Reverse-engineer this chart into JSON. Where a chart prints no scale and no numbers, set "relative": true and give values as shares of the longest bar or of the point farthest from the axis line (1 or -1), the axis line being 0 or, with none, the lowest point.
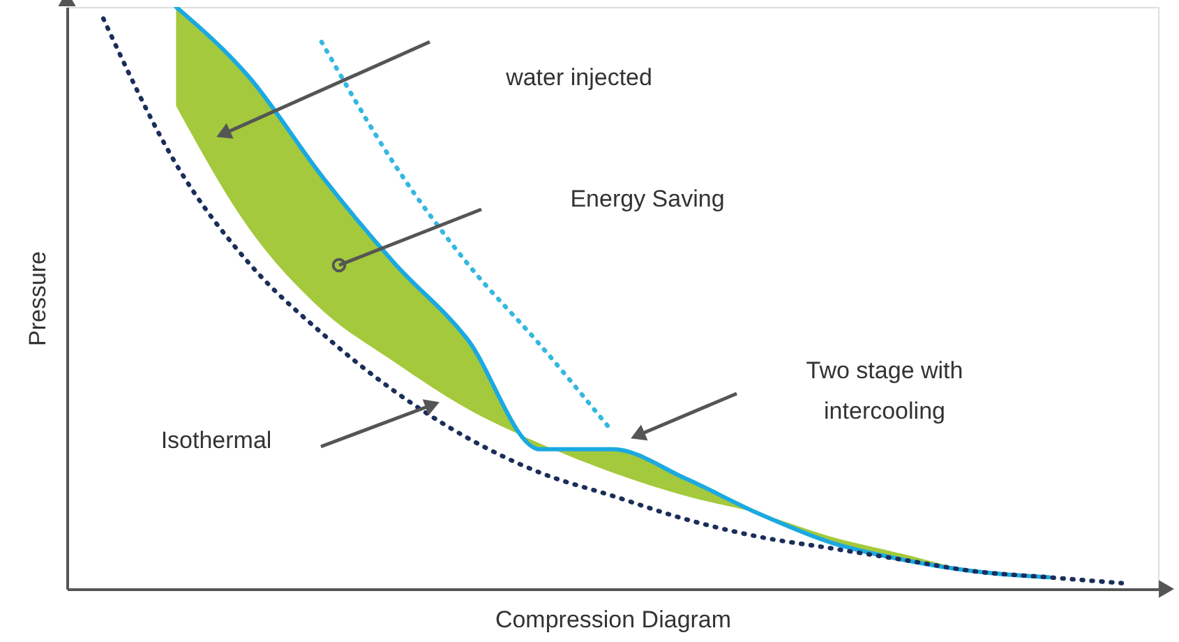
{
  "chart_data": {
    "type": "line",
    "relative": true,
    "xlabel": "Compression Diagram",
    "ylabel": "Pressure",
    "categories": [
      null,
      null,
      null,
      null,
      null,
      null,
      null,
      null,
      null,
      null,
      null,
      null,
      null,
      null,
      null
    ],
    "series": [
      {
        "type": "line",
        "color": "#1ba9e1",
        "line_style": "solid",
        "values": [
          null,
          1.0,
          0.88,
          0.71,
          0.56,
          0.43,
          0.24,
          0.24,
          0.19,
          0.13,
          0.08,
          0.05,
          0.03,
          0.02,
          null
        ],
        "lower": [
          null,
          0.83,
          0.62,
          0.48,
          0.39,
          0.31,
          0.25,
          0.2,
          0.16,
          0.13,
          0.09,
          0.06,
          0.03,
          0.02,
          null
        ],
        "upper": [
          null,
          1.0,
          0.88,
          0.71,
          0.56,
          0.43,
          0.24,
          0.24,
          0.19,
          0.13,
          0.08,
          0.05,
          0.03,
          0.02,
          null
        ]
      },
      {
        "color": "#1b2e5a",
        "line_style": "dotted",
        "values": [
          0.98,
          0.73,
          0.56,
          0.44,
          0.34,
          0.26,
          0.2,
          0.16,
          0.12,
          0.09,
          0.07,
          0.05,
          0.03,
          0.02,
          0.01
        ]
      },
      {
        "color": "#35b8e0",
        "line_style": "dotted",
        "values": [
          null,
          null,
          null,
          0.94,
          0.73,
          0.56,
          0.42,
          0.27,
          null,
          null,
          null,
          null,
          null,
          null,
          null
        ]
      }
    ],
    "annotations": [
      "water injected",
      "Energy Saving",
      "Two stage with\nintercooling",
      "Isothermal"
    ],
    "grid": false
  }
}
